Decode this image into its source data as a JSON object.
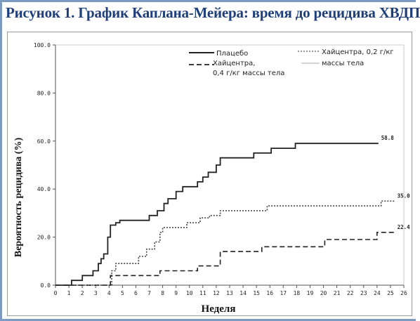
{
  "title": "Рисунок 1. График Каплана-Мейера: время до рецидива ХВДП",
  "chart_data": {
    "type": "line",
    "xlabel": "Неделя",
    "ylabel": "Вероятность рецидива (%)",
    "xlim": [
      0,
      26
    ],
    "ylim": [
      0,
      100
    ],
    "x_ticks": [
      "0",
      "1",
      "2",
      "3",
      "4",
      "5",
      "6",
      "7",
      "8",
      "9",
      "10",
      "11",
      "12",
      "13",
      "14",
      "15",
      "16",
      "17",
      "18",
      "19",
      "20",
      "21",
      "22",
      "23",
      "24",
      "25",
      "26"
    ],
    "y_ticks": [
      "0.0",
      "20.0",
      "40.0",
      "60.0",
      "80.0",
      "100.0"
    ],
    "legend_position": "top",
    "series": [
      {
        "name": "Плацебо",
        "style": "solid",
        "color": "#222222",
        "end_label": "58.8",
        "points": [
          [
            0,
            0
          ],
          [
            1.2,
            0
          ],
          [
            1.2,
            2
          ],
          [
            2,
            2
          ],
          [
            2,
            4
          ],
          [
            2.8,
            4
          ],
          [
            2.8,
            6
          ],
          [
            3.2,
            6
          ],
          [
            3.2,
            9
          ],
          [
            3.4,
            9
          ],
          [
            3.4,
            11
          ],
          [
            3.6,
            11
          ],
          [
            3.6,
            13
          ],
          [
            3.9,
            13
          ],
          [
            3.9,
            20
          ],
          [
            4.1,
            20
          ],
          [
            4.1,
            25
          ],
          [
            4.5,
            25
          ],
          [
            4.5,
            26
          ],
          [
            4.8,
            26
          ],
          [
            4.8,
            27
          ],
          [
            7,
            27
          ],
          [
            7,
            29
          ],
          [
            7.6,
            29
          ],
          [
            7.6,
            31
          ],
          [
            8.1,
            31
          ],
          [
            8.1,
            34
          ],
          [
            8.4,
            34
          ],
          [
            8.4,
            36
          ],
          [
            9,
            36
          ],
          [
            9,
            39
          ],
          [
            9.5,
            39
          ],
          [
            9.5,
            41
          ],
          [
            10.6,
            41
          ],
          [
            10.6,
            43
          ],
          [
            11,
            43
          ],
          [
            11,
            45
          ],
          [
            11.4,
            45
          ],
          [
            11.4,
            47
          ],
          [
            12,
            47
          ],
          [
            12,
            50
          ],
          [
            12.3,
            50
          ],
          [
            12.3,
            53
          ],
          [
            14.8,
            53
          ],
          [
            14.8,
            55
          ],
          [
            16.1,
            55
          ],
          [
            16.1,
            57
          ],
          [
            17.9,
            57
          ],
          [
            17.9,
            59
          ],
          [
            24.1,
            59
          ]
        ]
      },
      {
        "name": "Хайцентра, 0,2 г/кг массы тела",
        "style": "dotted",
        "color": "#444444",
        "end_label": "35.0",
        "points": [
          [
            0,
            0
          ],
          [
            4.2,
            0
          ],
          [
            4.2,
            6
          ],
          [
            4.5,
            6
          ],
          [
            4.5,
            9
          ],
          [
            6.2,
            9
          ],
          [
            6.2,
            12
          ],
          [
            6.8,
            12
          ],
          [
            6.8,
            15
          ],
          [
            7.4,
            15
          ],
          [
            7.4,
            18
          ],
          [
            7.8,
            18
          ],
          [
            7.8,
            22
          ],
          [
            8,
            22
          ],
          [
            8,
            24
          ],
          [
            9.8,
            24
          ],
          [
            9.8,
            26
          ],
          [
            10.8,
            26
          ],
          [
            10.8,
            28
          ],
          [
            11.5,
            28
          ],
          [
            11.5,
            29
          ],
          [
            12.3,
            29
          ],
          [
            12.3,
            31
          ],
          [
            15.8,
            31
          ],
          [
            15.8,
            33
          ],
          [
            24.3,
            33
          ],
          [
            24.3,
            35
          ],
          [
            25.3,
            35
          ]
        ]
      },
      {
        "name": "Хайцентра, 0,4 г/кг массы тела",
        "style": "dashed",
        "color": "#222222",
        "end_label": "22.4",
        "points": [
          [
            0,
            0
          ],
          [
            4.1,
            0
          ],
          [
            4.1,
            4
          ],
          [
            7.8,
            4
          ],
          [
            7.8,
            6
          ],
          [
            10.6,
            6
          ],
          [
            10.6,
            8
          ],
          [
            12.3,
            8
          ],
          [
            12.3,
            14
          ],
          [
            15.4,
            14
          ],
          [
            15.4,
            16
          ],
          [
            20.1,
            16
          ],
          [
            20.1,
            19
          ],
          [
            24,
            19
          ],
          [
            24,
            22
          ],
          [
            25.3,
            22
          ]
        ]
      }
    ],
    "end_labels": [
      "58.8",
      "35.0",
      "22.4"
    ]
  },
  "legend": {
    "placebo": "Плацебо",
    "hc04_line1": "Хайцентра,",
    "hc04_line2": "0,4 г/кг массы тела",
    "hc02_line1": "Хайцентра, 0,2 г/кг",
    "hc02_line2": "массы тела"
  }
}
